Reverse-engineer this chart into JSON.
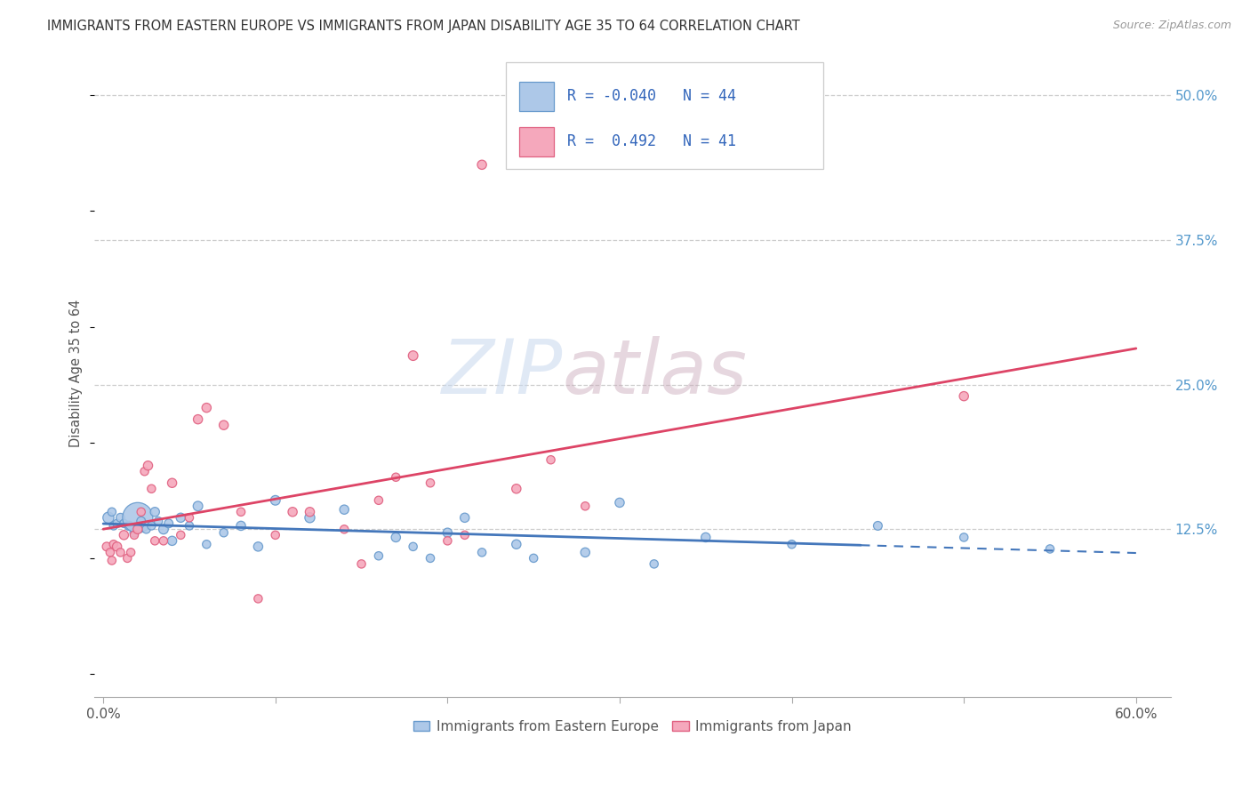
{
  "title": "IMMIGRANTS FROM EASTERN EUROPE VS IMMIGRANTS FROM JAPAN DISABILITY AGE 35 TO 64 CORRELATION CHART",
  "source": "Source: ZipAtlas.com",
  "ylabel": "Disability Age 35 to 64",
  "x_tick_labels": [
    "0.0%",
    "",
    "",
    "",
    "",
    "",
    "60.0%"
  ],
  "x_tick_vals": [
    0,
    10,
    20,
    30,
    40,
    50,
    60
  ],
  "y_tick_labels_right": [
    "50.0%",
    "37.5%",
    "25.0%",
    "12.5%"
  ],
  "y_tick_vals": [
    50,
    37.5,
    25,
    12.5
  ],
  "xlim": [
    -0.5,
    62
  ],
  "ylim": [
    -2,
    54
  ],
  "legend_labels_bottom": [
    "Immigrants from Eastern Europe",
    "Immigrants from Japan"
  ],
  "R_blue": -0.04,
  "N_blue": 44,
  "R_pink": 0.492,
  "N_pink": 41,
  "color_blue": "#adc8e8",
  "color_pink": "#f5a8bc",
  "color_blue_border": "#6699cc",
  "color_pink_border": "#e06080",
  "color_blue_line": "#4477bb",
  "color_pink_line": "#dd4466",
  "watermark_zip": "ZIP",
  "watermark_atlas": "atlas",
  "blue_x": [
    0.3,
    0.5,
    0.6,
    0.8,
    1.0,
    1.2,
    1.5,
    1.8,
    2.0,
    2.2,
    2.5,
    2.8,
    3.0,
    3.2,
    3.5,
    3.8,
    4.0,
    4.5,
    5.0,
    5.5,
    6.0,
    7.0,
    8.0,
    9.0,
    10.0,
    12.0,
    14.0,
    16.0,
    17.0,
    18.0,
    19.0,
    20.0,
    21.0,
    22.0,
    24.0,
    25.0,
    28.0,
    30.0,
    32.0,
    35.0,
    40.0,
    45.0,
    50.0,
    55.0
  ],
  "blue_y": [
    13.5,
    14.0,
    12.8,
    13.0,
    13.5,
    13.0,
    12.8,
    12.2,
    13.5,
    13.2,
    12.5,
    12.8,
    14.0,
    13.2,
    12.5,
    13.0,
    11.5,
    13.5,
    12.8,
    14.5,
    11.2,
    12.2,
    12.8,
    11.0,
    15.0,
    13.5,
    14.2,
    10.2,
    11.8,
    11.0,
    10.0,
    12.2,
    13.5,
    10.5,
    11.2,
    10.0,
    10.5,
    14.8,
    9.5,
    11.8,
    11.2,
    12.8,
    11.8,
    10.8
  ],
  "blue_sizes": [
    80,
    45,
    45,
    45,
    50,
    45,
    55,
    50,
    600,
    50,
    45,
    45,
    55,
    45,
    60,
    50,
    55,
    55,
    45,
    60,
    45,
    45,
    55,
    55,
    60,
    65,
    55,
    45,
    55,
    45,
    45,
    55,
    55,
    45,
    55,
    45,
    55,
    55,
    45,
    55,
    45,
    50,
    45,
    45
  ],
  "pink_x": [
    0.2,
    0.4,
    0.5,
    0.6,
    0.8,
    1.0,
    1.2,
    1.4,
    1.6,
    1.8,
    2.0,
    2.2,
    2.4,
    2.6,
    2.8,
    3.0,
    3.5,
    4.0,
    4.5,
    5.0,
    5.5,
    6.0,
    7.0,
    8.0,
    9.0,
    10.0,
    11.0,
    12.0,
    14.0,
    15.0,
    16.0,
    17.0,
    18.0,
    19.0,
    20.0,
    21.0,
    22.0,
    24.0,
    26.0,
    28.0,
    50.0
  ],
  "pink_y": [
    11.0,
    10.5,
    9.8,
    11.2,
    11.0,
    10.5,
    12.0,
    10.0,
    10.5,
    12.0,
    12.5,
    14.0,
    17.5,
    18.0,
    16.0,
    11.5,
    11.5,
    16.5,
    12.0,
    13.5,
    22.0,
    23.0,
    21.5,
    14.0,
    6.5,
    12.0,
    14.0,
    14.0,
    12.5,
    9.5,
    15.0,
    17.0,
    27.5,
    16.5,
    11.5,
    12.0,
    44.0,
    16.0,
    18.5,
    14.5,
    24.0
  ],
  "pink_sizes": [
    50,
    45,
    45,
    45,
    55,
    45,
    55,
    45,
    45,
    45,
    55,
    45,
    45,
    55,
    45,
    45,
    45,
    55,
    45,
    45,
    55,
    55,
    55,
    45,
    45,
    45,
    55,
    55,
    45,
    45,
    45,
    45,
    60,
    45,
    45,
    45,
    55,
    55,
    45,
    45,
    55
  ],
  "blue_line_x": [
    0,
    44,
    60
  ],
  "blue_line_solid_end": 44
}
